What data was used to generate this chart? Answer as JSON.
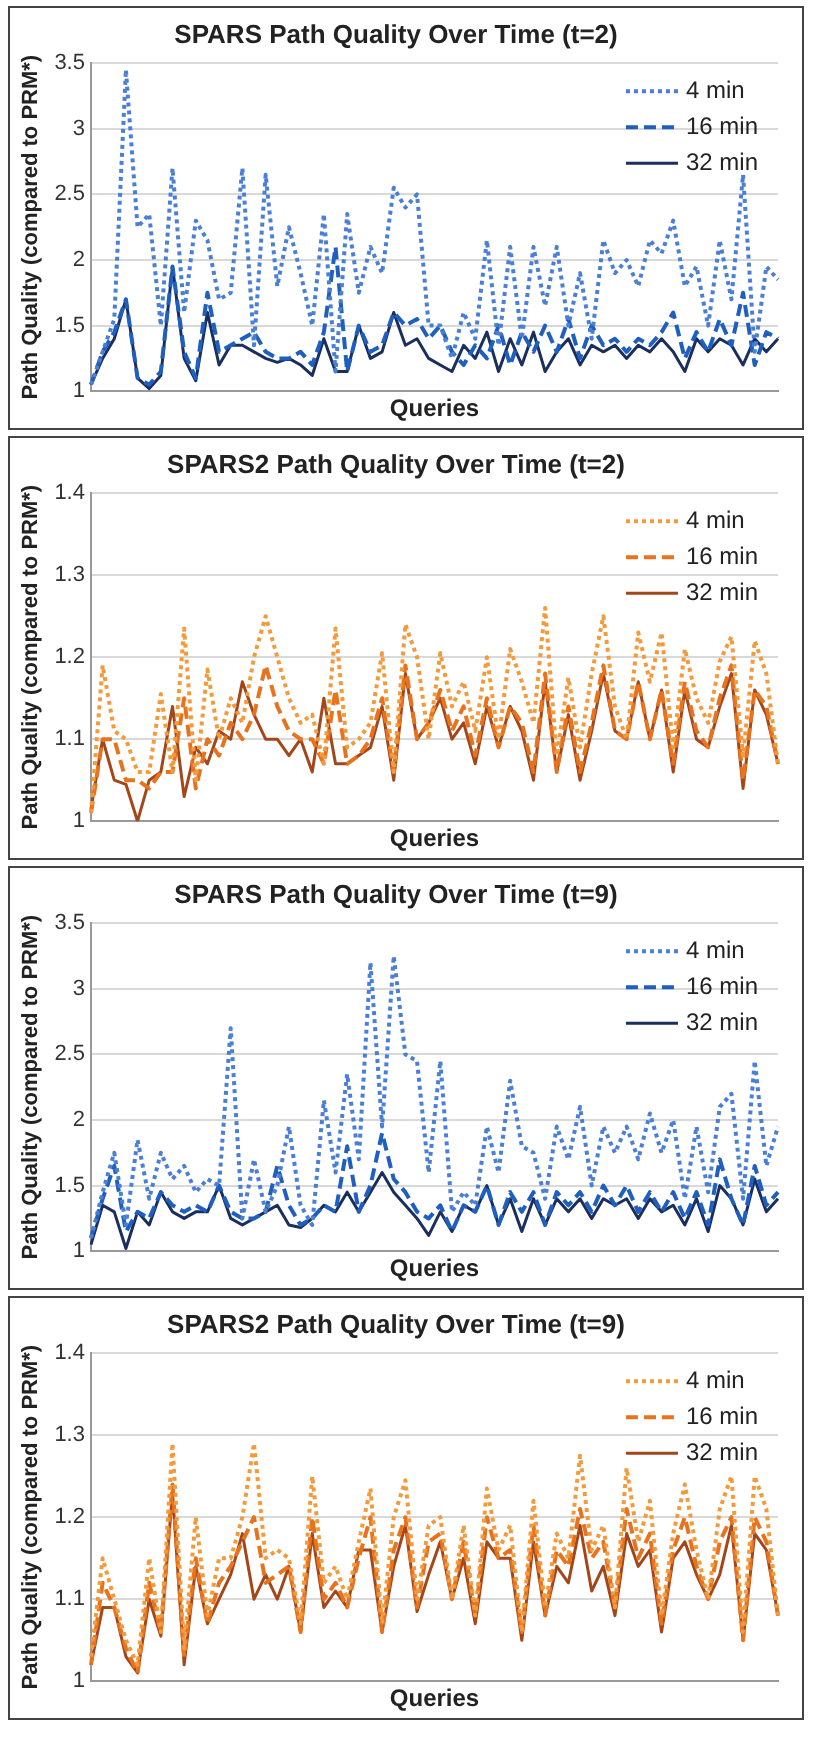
{
  "chart_data": [
    {
      "type": "line",
      "title": "SPARS Path Quality Over Time (t=2)",
      "xlabel": "Queries",
      "ylabel": "Path Quality (compared to PRM*)",
      "ylim": [
        1,
        3.5
      ],
      "yticks": [
        1,
        1.5,
        2,
        2.5,
        3,
        3.5
      ],
      "grid": "y",
      "legend": "top right",
      "marker": "none",
      "tick_labels": "y",
      "categories": [
        null,
        null,
        null,
        null,
        null,
        null,
        null,
        null,
        null,
        null,
        null,
        null,
        null,
        null,
        null,
        null,
        null,
        null,
        null,
        null,
        null,
        null,
        null,
        null,
        null,
        null,
        null,
        null,
        null,
        null,
        null,
        null,
        null,
        null,
        null,
        null,
        null,
        null,
        null,
        null,
        null,
        null,
        null,
        null,
        null,
        null,
        null,
        null,
        null,
        null,
        null,
        null,
        null,
        null,
        null,
        null,
        null,
        null,
        null,
        null
      ],
      "series": [
        {
          "name": "4 min",
          "color": "#4a7fd4",
          "line_style": "dotted",
          "values": [
            1.05,
            1.3,
            1.55,
            3.45,
            2.25,
            2.35,
            1.5,
            2.7,
            1.6,
            2.3,
            2.15,
            1.7,
            1.75,
            2.7,
            1.35,
            2.65,
            1.8,
            2.25,
            1.9,
            1.5,
            2.35,
            1.15,
            2.35,
            1.75,
            2.1,
            1.9,
            2.55,
            2.4,
            2.5,
            1.5,
            1.5,
            1.25,
            1.6,
            1.4,
            2.15,
            1.35,
            2.1,
            1.4,
            2.1,
            1.65,
            2.1,
            1.5,
            1.9,
            1.4,
            2.15,
            1.9,
            2.0,
            1.8,
            2.15,
            2.05,
            2.3,
            1.8,
            1.95,
            1.5,
            2.15,
            1.7,
            2.65,
            1.3,
            1.95,
            1.85
          ]
        },
        {
          "name": "16 min",
          "color": "#1f5fc0",
          "line_style": "dashed",
          "values": [
            1.05,
            1.3,
            1.45,
            1.7,
            1.1,
            1.05,
            1.15,
            1.95,
            1.3,
            1.1,
            1.75,
            1.3,
            1.35,
            1.4,
            1.45,
            1.3,
            1.25,
            1.25,
            1.3,
            1.2,
            1.45,
            2.1,
            1.15,
            1.5,
            1.3,
            1.35,
            1.6,
            1.5,
            1.55,
            1.4,
            1.5,
            1.3,
            1.2,
            1.35,
            1.25,
            1.5,
            1.2,
            1.45,
            1.3,
            1.5,
            1.3,
            1.55,
            1.25,
            1.5,
            1.35,
            1.4,
            1.3,
            1.4,
            1.35,
            1.45,
            1.6,
            1.25,
            1.45,
            1.3,
            1.55,
            1.35,
            1.75,
            1.2,
            1.45,
            1.4
          ]
        },
        {
          "name": "32 min",
          "color": "#1b2f5e",
          "line_style": "solid",
          "values": [
            1.05,
            1.25,
            1.4,
            1.7,
            1.1,
            1.02,
            1.12,
            1.95,
            1.25,
            1.08,
            1.6,
            1.2,
            1.35,
            1.35,
            1.3,
            1.25,
            1.22,
            1.25,
            1.2,
            1.12,
            1.4,
            1.15,
            1.15,
            1.5,
            1.25,
            1.3,
            1.6,
            1.35,
            1.4,
            1.25,
            1.2,
            1.15,
            1.35,
            1.25,
            1.45,
            1.15,
            1.4,
            1.2,
            1.45,
            1.15,
            1.3,
            1.4,
            1.2,
            1.35,
            1.3,
            1.35,
            1.25,
            1.35,
            1.3,
            1.4,
            1.3,
            1.15,
            1.4,
            1.3,
            1.4,
            1.35,
            1.2,
            1.4,
            1.3,
            1.4
          ]
        }
      ]
    },
    {
      "type": "line",
      "title": "SPARS2 Path Quality Over Time (t=2)",
      "xlabel": "Queries",
      "ylabel": "Path Quality (compared to PRM*)",
      "ylim": [
        1,
        1.4
      ],
      "yticks": [
        1,
        1.1,
        1.2,
        1.3,
        1.4
      ],
      "grid": "y",
      "legend": "top right",
      "marker": "none",
      "tick_labels": "y",
      "categories": [
        null,
        null,
        null,
        null,
        null,
        null,
        null,
        null,
        null,
        null,
        null,
        null,
        null,
        null,
        null,
        null,
        null,
        null,
        null,
        null,
        null,
        null,
        null,
        null,
        null,
        null,
        null,
        null,
        null,
        null,
        null,
        null,
        null,
        null,
        null,
        null,
        null,
        null,
        null,
        null,
        null,
        null,
        null,
        null,
        null,
        null,
        null,
        null,
        null,
        null,
        null,
        null,
        null,
        null,
        null,
        null,
        null,
        null,
        null,
        null
      ],
      "series": [
        {
          "name": "4 min",
          "color": "#f39a3c",
          "line_style": "dotted",
          "values": [
            1.01,
            1.19,
            1.11,
            1.1,
            1.06,
            1.06,
            1.155,
            1.06,
            1.235,
            1.05,
            1.185,
            1.1,
            1.15,
            1.12,
            1.2,
            1.25,
            1.2,
            1.15,
            1.12,
            1.13,
            1.07,
            1.235,
            1.09,
            1.1,
            1.12,
            1.205,
            1.06,
            1.24,
            1.2,
            1.1,
            1.205,
            1.14,
            1.17,
            1.11,
            1.2,
            1.1,
            1.21,
            1.17,
            1.12,
            1.26,
            1.08,
            1.175,
            1.09,
            1.18,
            1.25,
            1.14,
            1.1,
            1.23,
            1.17,
            1.23,
            1.09,
            1.21,
            1.15,
            1.12,
            1.195,
            1.225,
            1.08,
            1.22,
            1.18,
            1.07
          ]
        },
        {
          "name": "16 min",
          "color": "#e8731e",
          "line_style": "dashed",
          "values": [
            1.01,
            1.1,
            1.1,
            1.05,
            1.05,
            1.04,
            1.06,
            1.06,
            1.15,
            1.04,
            1.1,
            1.08,
            1.12,
            1.1,
            1.13,
            1.19,
            1.14,
            1.11,
            1.1,
            1.1,
            1.07,
            1.16,
            1.07,
            1.08,
            1.1,
            1.15,
            1.06,
            1.19,
            1.1,
            1.12,
            1.16,
            1.11,
            1.14,
            1.08,
            1.15,
            1.09,
            1.14,
            1.12,
            1.06,
            1.18,
            1.06,
            1.14,
            1.06,
            1.12,
            1.19,
            1.11,
            1.1,
            1.17,
            1.1,
            1.16,
            1.07,
            1.17,
            1.11,
            1.09,
            1.15,
            1.19,
            1.05,
            1.16,
            1.14,
            1.07
          ]
        },
        {
          "name": "32 min",
          "color": "#a3461a",
          "line_style": "solid",
          "values": [
            1.015,
            1.1,
            1.05,
            1.045,
            1.0,
            1.05,
            1.06,
            1.14,
            1.03,
            1.09,
            1.07,
            1.11,
            1.1,
            1.17,
            1.13,
            1.1,
            1.1,
            1.08,
            1.1,
            1.06,
            1.15,
            1.07,
            1.07,
            1.08,
            1.09,
            1.14,
            1.05,
            1.18,
            1.1,
            1.12,
            1.15,
            1.1,
            1.12,
            1.07,
            1.14,
            1.09,
            1.14,
            1.11,
            1.05,
            1.17,
            1.06,
            1.13,
            1.05,
            1.11,
            1.18,
            1.11,
            1.1,
            1.17,
            1.1,
            1.16,
            1.06,
            1.16,
            1.1,
            1.09,
            1.14,
            1.18,
            1.04,
            1.16,
            1.13,
            1.07
          ]
        }
      ]
    },
    {
      "type": "line",
      "title": "SPARS Path Quality Over Time (t=9)",
      "xlabel": "Queries",
      "ylabel": "Path Quality (compared to PRM*)",
      "ylim": [
        1,
        3.5
      ],
      "yticks": [
        1,
        1.5,
        2,
        2.5,
        3,
        3.5
      ],
      "grid": "y",
      "legend": "top right",
      "marker": "none",
      "tick_labels": "y",
      "categories": [
        null,
        null,
        null,
        null,
        null,
        null,
        null,
        null,
        null,
        null,
        null,
        null,
        null,
        null,
        null,
        null,
        null,
        null,
        null,
        null,
        null,
        null,
        null,
        null,
        null,
        null,
        null,
        null,
        null,
        null,
        null,
        null,
        null,
        null,
        null,
        null,
        null,
        null,
        null,
        null,
        null,
        null,
        null,
        null,
        null,
        null,
        null,
        null,
        null,
        null,
        null,
        null,
        null,
        null,
        null,
        null,
        null,
        null,
        null,
        null
      ],
      "series": [
        {
          "name": "4 min",
          "color": "#4a7fd4",
          "line_style": "dotted",
          "values": [
            1.1,
            1.45,
            1.75,
            1.2,
            1.85,
            1.4,
            1.75,
            1.55,
            1.65,
            1.45,
            1.55,
            1.5,
            2.7,
            1.25,
            1.7,
            1.3,
            1.5,
            1.95,
            1.35,
            1.2,
            2.15,
            1.6,
            2.35,
            1.7,
            3.2,
            1.95,
            3.25,
            2.5,
            2.45,
            1.6,
            2.45,
            1.3,
            1.45,
            1.35,
            1.95,
            1.6,
            2.3,
            1.8,
            1.75,
            1.4,
            1.95,
            1.7,
            2.1,
            1.5,
            1.95,
            1.75,
            1.95,
            1.7,
            2.05,
            1.75,
            2.0,
            1.4,
            1.95,
            1.45,
            2.1,
            2.2,
            1.4,
            2.45,
            1.65,
            1.95
          ]
        },
        {
          "name": "16 min",
          "color": "#1f5fc0",
          "line_style": "dashed",
          "values": [
            1.1,
            1.4,
            1.65,
            1.15,
            1.3,
            1.25,
            1.45,
            1.35,
            1.3,
            1.35,
            1.3,
            1.5,
            1.3,
            1.25,
            1.25,
            1.3,
            1.65,
            1.35,
            1.2,
            1.25,
            1.35,
            1.3,
            1.8,
            1.3,
            1.5,
            1.9,
            1.55,
            1.45,
            1.3,
            1.25,
            1.35,
            1.15,
            1.35,
            1.3,
            1.5,
            1.2,
            1.45,
            1.3,
            1.45,
            1.2,
            1.45,
            1.35,
            1.45,
            1.3,
            1.5,
            1.35,
            1.5,
            1.3,
            1.45,
            1.3,
            1.45,
            1.25,
            1.45,
            1.2,
            1.7,
            1.4,
            1.2,
            1.65,
            1.35,
            1.45
          ]
        },
        {
          "name": "32 min",
          "color": "#1b2f5e",
          "line_style": "solid",
          "values": [
            1.05,
            1.35,
            1.3,
            1.02,
            1.3,
            1.2,
            1.45,
            1.3,
            1.25,
            1.3,
            1.3,
            1.5,
            1.25,
            1.2,
            1.25,
            1.3,
            1.35,
            1.2,
            1.18,
            1.25,
            1.35,
            1.3,
            1.45,
            1.3,
            1.45,
            1.6,
            1.45,
            1.35,
            1.25,
            1.12,
            1.3,
            1.15,
            1.35,
            1.3,
            1.5,
            1.2,
            1.4,
            1.15,
            1.4,
            1.2,
            1.4,
            1.3,
            1.4,
            1.25,
            1.4,
            1.35,
            1.4,
            1.25,
            1.4,
            1.3,
            1.35,
            1.2,
            1.4,
            1.15,
            1.5,
            1.4,
            1.2,
            1.55,
            1.3,
            1.4
          ]
        }
      ]
    },
    {
      "type": "line",
      "title": "SPARS2 Path Quality Over Time (t=9)",
      "xlabel": "Queries",
      "ylabel": "Path Quality (compared to PRM*)",
      "ylim": [
        1,
        1.4
      ],
      "yticks": [
        1,
        1.1,
        1.2,
        1.3,
        1.4
      ],
      "grid": "y",
      "legend": "top right",
      "marker": "none",
      "tick_labels": "y",
      "categories": [
        null,
        null,
        null,
        null,
        null,
        null,
        null,
        null,
        null,
        null,
        null,
        null,
        null,
        null,
        null,
        null,
        null,
        null,
        null,
        null,
        null,
        null,
        null,
        null,
        null,
        null,
        null,
        null,
        null,
        null,
        null,
        null,
        null,
        null,
        null,
        null,
        null,
        null,
        null,
        null,
        null,
        null,
        null,
        null,
        null,
        null,
        null,
        null,
        null,
        null,
        null,
        null,
        null,
        null,
        null,
        null,
        null,
        null,
        null,
        null
      ],
      "series": [
        {
          "name": "4 min",
          "color": "#f39a3c",
          "line_style": "dotted",
          "values": [
            1.03,
            1.15,
            1.1,
            1.05,
            1.02,
            1.15,
            1.06,
            1.29,
            1.04,
            1.2,
            1.08,
            1.15,
            1.15,
            1.2,
            1.29,
            1.15,
            1.16,
            1.15,
            1.07,
            1.25,
            1.12,
            1.14,
            1.1,
            1.17,
            1.235,
            1.07,
            1.2,
            1.245,
            1.1,
            1.19,
            1.2,
            1.1,
            1.19,
            1.08,
            1.235,
            1.16,
            1.19,
            1.06,
            1.22,
            1.09,
            1.18,
            1.15,
            1.275,
            1.16,
            1.19,
            1.09,
            1.26,
            1.17,
            1.22,
            1.08,
            1.18,
            1.24,
            1.16,
            1.1,
            1.21,
            1.25,
            1.06,
            1.25,
            1.21,
            1.08
          ]
        },
        {
          "name": "16 min",
          "color": "#e8731e",
          "line_style": "dashed",
          "values": [
            1.02,
            1.12,
            1.09,
            1.04,
            1.01,
            1.12,
            1.06,
            1.24,
            1.03,
            1.15,
            1.07,
            1.12,
            1.14,
            1.17,
            1.2,
            1.12,
            1.13,
            1.14,
            1.06,
            1.2,
            1.1,
            1.12,
            1.09,
            1.15,
            1.2,
            1.06,
            1.16,
            1.2,
            1.09,
            1.17,
            1.18,
            1.1,
            1.17,
            1.08,
            1.2,
            1.15,
            1.16,
            1.06,
            1.19,
            1.08,
            1.16,
            1.14,
            1.21,
            1.15,
            1.17,
            1.09,
            1.21,
            1.15,
            1.18,
            1.07,
            1.16,
            1.2,
            1.14,
            1.1,
            1.17,
            1.2,
            1.05,
            1.2,
            1.17,
            1.08
          ]
        },
        {
          "name": "32 min",
          "color": "#a3461a",
          "line_style": "solid",
          "values": [
            1.02,
            1.09,
            1.09,
            1.03,
            1.01,
            1.1,
            1.055,
            1.23,
            1.02,
            1.14,
            1.07,
            1.1,
            1.13,
            1.18,
            1.1,
            1.13,
            1.1,
            1.14,
            1.06,
            1.18,
            1.09,
            1.11,
            1.09,
            1.16,
            1.16,
            1.06,
            1.14,
            1.19,
            1.085,
            1.13,
            1.17,
            1.1,
            1.15,
            1.07,
            1.17,
            1.15,
            1.15,
            1.05,
            1.17,
            1.08,
            1.14,
            1.12,
            1.19,
            1.11,
            1.14,
            1.08,
            1.18,
            1.14,
            1.16,
            1.06,
            1.15,
            1.17,
            1.13,
            1.1,
            1.13,
            1.19,
            1.05,
            1.18,
            1.16,
            1.08
          ]
        }
      ]
    }
  ]
}
